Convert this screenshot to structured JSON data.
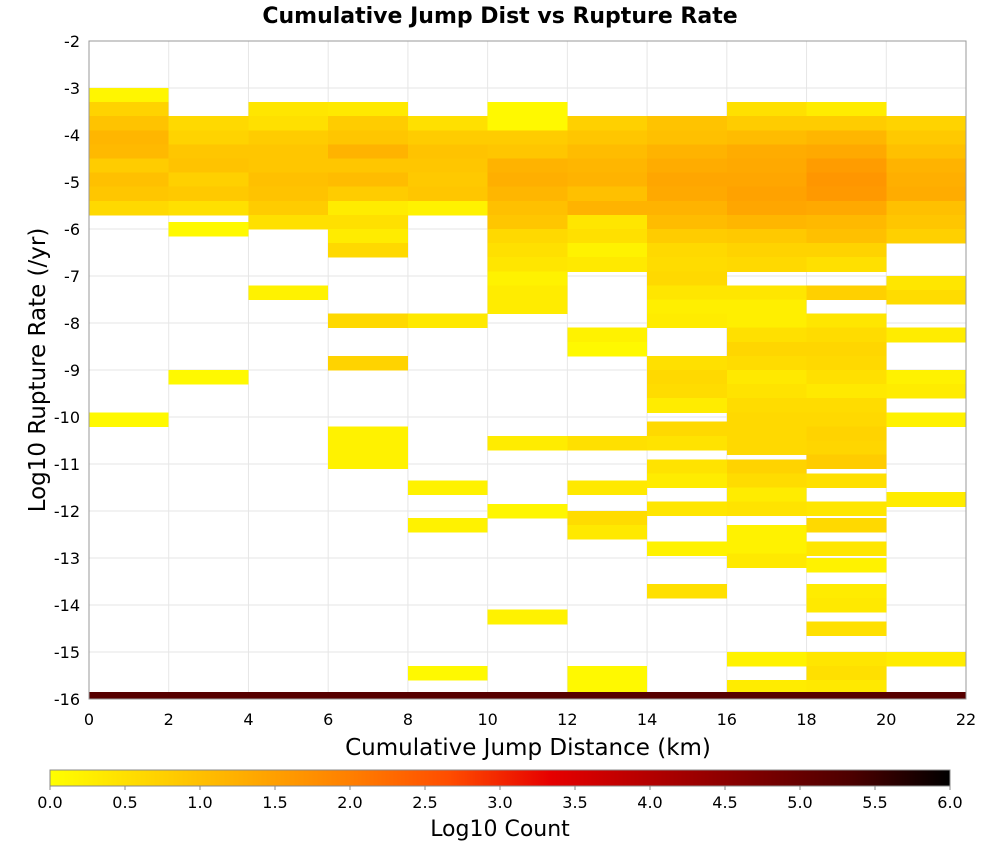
{
  "chart_data": {
    "type": "heatmap",
    "title": "Cumulative Jump Dist vs Rupture Rate",
    "xlabel": "Cumulative Jump Distance (km)",
    "ylabel": "Log10 Rupture Rate (/yr)",
    "xlim": [
      0,
      22
    ],
    "ylim": [
      -16,
      -2
    ],
    "xticks": [
      "0",
      "2",
      "4",
      "6",
      "8",
      "10",
      "12",
      "14",
      "16",
      "18",
      "20",
      "22"
    ],
    "yticks": [
      "-2",
      "-3",
      "-4",
      "-5",
      "-6",
      "-7",
      "-8",
      "-9",
      "-10",
      "-11",
      "-12",
      "-13",
      "-14",
      "-15",
      "-16"
    ],
    "x_bin_width": 2,
    "y_bin_height": 0.3,
    "grid": true,
    "colorbar": {
      "label": "Log10 Count",
      "range": [
        0,
        6
      ],
      "ticks": [
        "0.0",
        "0.5",
        "1.0",
        "1.5",
        "2.0",
        "2.5",
        "3.0",
        "3.5",
        "4.0",
        "4.5",
        "5.0",
        "5.5",
        "6.0"
      ],
      "colors": [
        "#ffff00",
        "#ffd500",
        "#ffaa00",
        "#ff7f00",
        "#ff4c00",
        "#e60000",
        "#b30000",
        "#800000",
        "#4d0000",
        "#000000"
      ]
    },
    "columns": [
      {
        "x": 1,
        "y": [
          -3.15,
          -3.45,
          -3.75,
          -4.05,
          -4.35,
          -4.65,
          -4.95,
          -5.25,
          -5.55,
          -10.05
        ],
        "z": [
          0.15,
          0.7,
          0.95,
          1.15,
          1.1,
          0.8,
          1.0,
          0.9,
          0.6,
          0.1
        ]
      },
      {
        "x": 3,
        "y": [
          -3.75,
          -4.05,
          -4.35,
          -4.65,
          -4.95,
          -5.25,
          -5.55,
          -6.0,
          -9.15
        ],
        "z": [
          0.6,
          0.7,
          0.9,
          0.95,
          0.75,
          0.85,
          0.5,
          0.1,
          0.1
        ]
      },
      {
        "x": 5,
        "y": [
          -3.45,
          -3.75,
          -4.05,
          -4.35,
          -4.65,
          -4.95,
          -5.25,
          -5.55,
          -5.85,
          -7.35
        ],
        "z": [
          0.4,
          0.5,
          0.8,
          0.9,
          0.9,
          1.0,
          0.95,
          0.8,
          0.5,
          0.2
        ]
      },
      {
        "x": 7,
        "y": [
          -3.45,
          -3.75,
          -4.05,
          -4.35,
          -4.65,
          -4.95,
          -5.25,
          -5.55,
          -5.85,
          -6.15,
          -6.45,
          -7.95,
          -8.85,
          -10.35,
          -10.65,
          -10.95
        ],
        "z": [
          0.35,
          0.8,
          0.9,
          1.2,
          0.9,
          1.05,
          0.8,
          0.3,
          0.5,
          0.3,
          0.6,
          0.6,
          0.7,
          0.2,
          0.2,
          0.2
        ]
      },
      {
        "x": 9,
        "y": [
          -3.75,
          -4.05,
          -4.35,
          -4.65,
          -4.95,
          -5.25,
          -5.55,
          -7.95,
          -11.5,
          -12.3,
          -15.45
        ],
        "z": [
          0.5,
          0.8,
          0.95,
          0.9,
          0.85,
          0.9,
          0.2,
          0.35,
          0.2,
          0.2,
          0.1
        ]
      },
      {
        "x": 11,
        "y": [
          -3.45,
          -3.75,
          -4.05,
          -4.35,
          -4.65,
          -4.95,
          -5.25,
          -5.55,
          -5.85,
          -6.15,
          -6.45,
          -6.75,
          -7.05,
          -7.35,
          -7.65,
          -10.55,
          -12.0,
          -14.25
        ],
        "z": [
          0.1,
          0.1,
          0.8,
          0.9,
          1.2,
          1.25,
          1.15,
          1.0,
          0.9,
          0.6,
          0.5,
          0.4,
          0.2,
          0.3,
          0.3,
          0.3,
          0.15,
          0.2
        ]
      },
      {
        "x": 13,
        "y": [
          -3.75,
          -4.05,
          -4.35,
          -4.65,
          -4.95,
          -5.25,
          -5.55,
          -5.85,
          -6.15,
          -6.45,
          -6.75,
          -8.25,
          -8.55,
          -10.55,
          -11.5,
          -12.15,
          -12.45,
          -15.45,
          -15.75
        ],
        "z": [
          0.75,
          0.9,
          1.05,
          1.15,
          1.2,
          1.0,
          1.2,
          0.4,
          0.5,
          0.2,
          0.35,
          0.2,
          0.1,
          0.5,
          0.35,
          0.55,
          0.35,
          0.1,
          0.1
        ]
      },
      {
        "x": 15,
        "y": [
          -3.75,
          -4.05,
          -4.35,
          -4.65,
          -4.95,
          -5.25,
          -5.55,
          -5.85,
          -6.15,
          -6.45,
          -6.75,
          -7.05,
          -7.35,
          -7.65,
          -7.95,
          -8.85,
          -9.15,
          -9.45,
          -9.75,
          -10.25,
          -10.55,
          -11.05,
          -11.35,
          -11.95,
          -12.8,
          -13.7
        ],
        "z": [
          0.95,
          1.0,
          1.2,
          1.3,
          1.4,
          1.35,
          1.2,
          1.05,
          0.8,
          0.6,
          0.55,
          0.6,
          0.4,
          0.25,
          0.3,
          0.5,
          0.6,
          0.55,
          0.3,
          0.6,
          0.45,
          0.45,
          0.3,
          0.4,
          0.2,
          0.5
        ]
      },
      {
        "x": 17,
        "y": [
          -3.45,
          -3.75,
          -4.05,
          -4.35,
          -4.65,
          -4.95,
          -5.25,
          -5.55,
          -5.85,
          -6.15,
          -6.45,
          -6.75,
          -7.35,
          -7.65,
          -7.95,
          -8.25,
          -8.55,
          -8.85,
          -9.15,
          -9.45,
          -9.75,
          -10.05,
          -10.35,
          -10.65,
          -11.05,
          -11.35,
          -11.65,
          -11.95,
          -12.45,
          -12.75,
          -13.05,
          -15.15,
          -15.75
        ],
        "z": [
          0.5,
          0.8,
          1.05,
          1.3,
          1.35,
          1.4,
          1.45,
          1.4,
          1.15,
          0.85,
          0.7,
          0.6,
          0.4,
          0.25,
          0.25,
          0.5,
          0.65,
          0.55,
          0.35,
          0.45,
          0.55,
          0.6,
          0.6,
          0.6,
          0.7,
          0.55,
          0.3,
          0.45,
          0.2,
          0.2,
          0.35,
          0.2,
          0.3
        ]
      },
      {
        "x": 19,
        "y": [
          -3.45,
          -3.75,
          -4.05,
          -4.35,
          -4.65,
          -4.95,
          -5.25,
          -5.55,
          -5.85,
          -6.15,
          -6.45,
          -6.75,
          -7.35,
          -7.95,
          -8.25,
          -8.55,
          -8.85,
          -9.15,
          -9.45,
          -9.75,
          -10.05,
          -10.35,
          -10.65,
          -10.95,
          -11.35,
          -11.95,
          -12.3,
          -12.8,
          -13.15,
          -13.7,
          -14.0,
          -14.5,
          -15.15,
          -15.45,
          -15.75
        ],
        "z": [
          0.3,
          0.8,
          1.15,
          1.35,
          1.55,
          1.65,
          1.6,
          1.35,
          1.1,
          1.0,
          0.7,
          0.5,
          0.75,
          0.4,
          0.55,
          0.65,
          0.6,
          0.5,
          0.35,
          0.55,
          0.6,
          0.7,
          0.65,
          0.8,
          0.5,
          0.4,
          0.6,
          0.4,
          0.2,
          0.3,
          0.35,
          0.5,
          0.4,
          0.5,
          0.35
        ]
      },
      {
        "x": 21,
        "y": [
          -3.75,
          -4.05,
          -4.35,
          -4.65,
          -4.95,
          -5.25,
          -5.55,
          -5.85,
          -6.15,
          -7.15,
          -7.45,
          -8.25,
          -9.15,
          -9.45,
          -10.05,
          -11.75,
          -15.15
        ],
        "z": [
          0.7,
          0.85,
          1.0,
          1.2,
          1.25,
          1.3,
          1.0,
          0.9,
          0.75,
          0.4,
          0.55,
          0.3,
          0.2,
          0.3,
          0.2,
          0.3,
          0.3
        ]
      },
      {
        "x_range": [
          0,
          22
        ],
        "y": [
          -15.93
        ],
        "height": 0.15,
        "z": [
          5.2
        ]
      }
    ]
  }
}
